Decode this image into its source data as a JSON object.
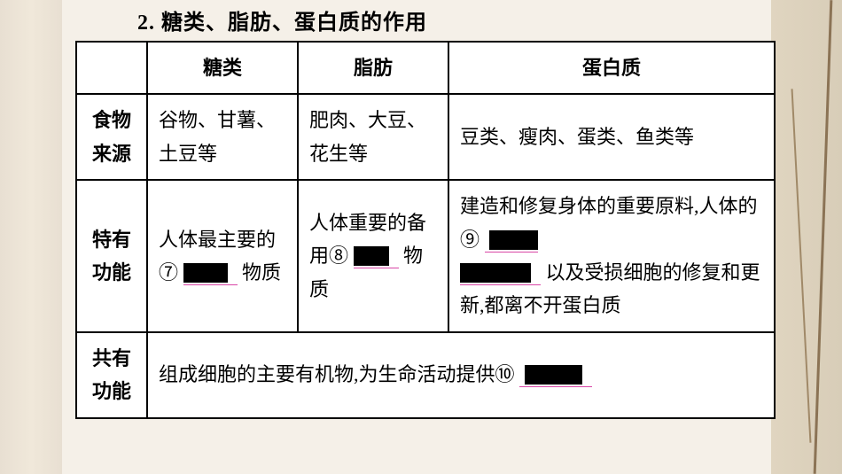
{
  "title": "2. 糖类、脂肪、蛋白质的作用",
  "table": {
    "headers": {
      "blank": "",
      "col1": "糖类",
      "col2": "脂肪",
      "col3": "蛋白质"
    },
    "rows": {
      "source": {
        "label": "食物来源",
        "col1": "谷物、甘薯、土豆等",
        "col2": "肥肉、大豆、花生等",
        "col3": "豆类、瘦肉、蛋类、鱼类等"
      },
      "unique": {
        "label": "特有功能",
        "col1_pre": "人体最主要的 ⑦",
        "col1_post": "物质",
        "col2_pre": "人体重要的备用⑧",
        "col2_post": "物质",
        "col3_pre": "建造和修复身体的重要原料,人体的⑨",
        "col3_mid": " 以及受损细胞的修复和更新,都离不开蛋白质"
      },
      "common": {
        "label": "共有功能",
        "text_pre": "组成细胞的主要有机物,为生命活动提供⑩"
      }
    }
  },
  "colors": {
    "border": "#000000",
    "underline": "#d946a6",
    "bg_paper": "#f5f0e8",
    "redaction": "#000000"
  }
}
